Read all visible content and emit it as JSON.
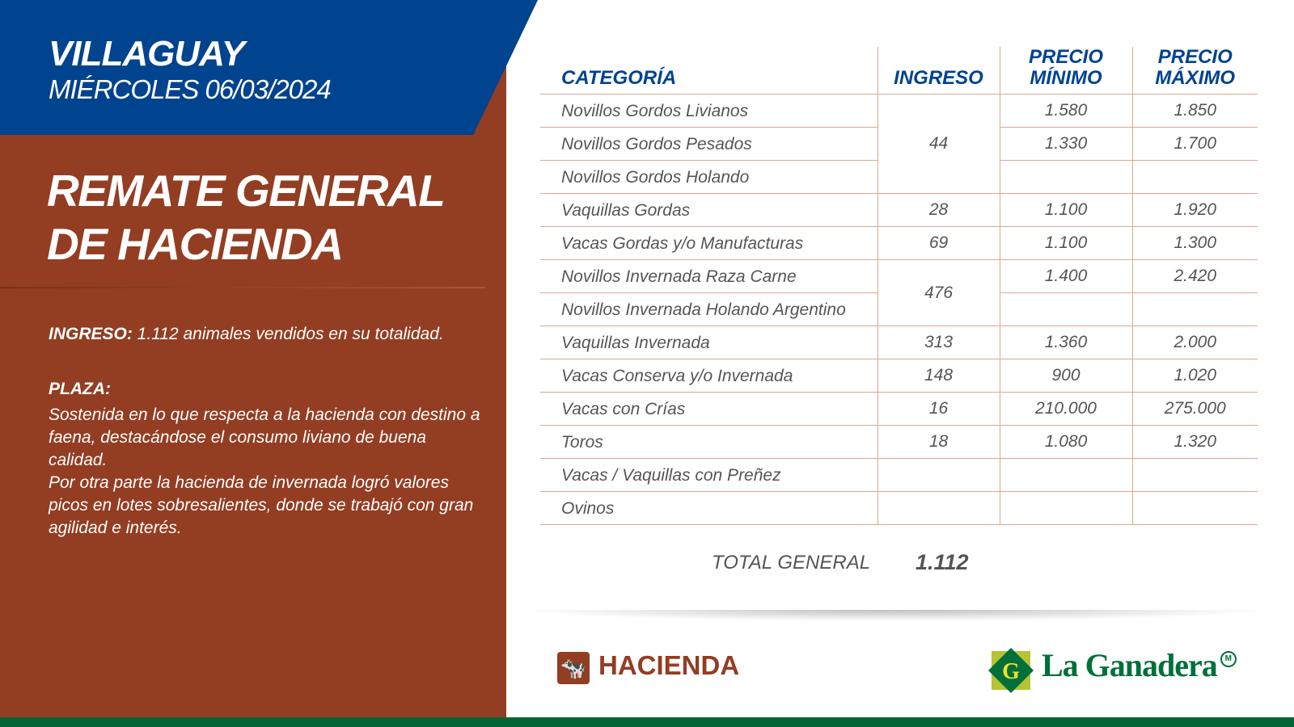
{
  "header": {
    "city": "VILLAGUAY",
    "date": "MIÉRCOLES 06/03/2024",
    "title_line1": "REMATE GENERAL",
    "title_line2": "DE HACIENDA"
  },
  "summary": {
    "ingreso_label": "INGRESO:",
    "ingreso_text": " 1.112 animales vendidos en su totalidad.",
    "plaza_label": "PLAZA:",
    "plaza_p1": "Sostenida en lo que respecta a la hacienda con destino a faena, destacándose el consumo liviano de buena calidad.",
    "plaza_p2": "Por otra parte la hacienda de invernada logró valores picos en lotes sobresalientes, donde se trabajó con gran agilidad e interés."
  },
  "table": {
    "headers": {
      "categoria": "CATEGORÍA",
      "ingreso": "INGRESO",
      "min1": "PRECIO",
      "min2": "MÍNIMO",
      "max1": "PRECIO",
      "max2": "MÁXIMO"
    },
    "rows": [
      {
        "cat": "Novillos Gordos Livianos",
        "ing": "44",
        "min": "1.580",
        "max": "1.850"
      },
      {
        "cat": "Novillos Gordos Pesados",
        "min": "1.330",
        "max": "1.700"
      },
      {
        "cat": "Novillos Gordos Holando",
        "min": "",
        "max": ""
      },
      {
        "cat": "Vaquillas Gordas",
        "ing": "28",
        "min": "1.100",
        "max": "1.920"
      },
      {
        "cat": "Vacas Gordas y/o Manufacturas",
        "ing": "69",
        "min": "1.100",
        "max": "1.300"
      },
      {
        "cat": "Novillos Invernada Raza Carne",
        "ing": "476",
        "min": "1.400",
        "max": "2.420"
      },
      {
        "cat": "Novillos Invernada Holando Argentino",
        "min": "",
        "max": ""
      },
      {
        "cat": "Vaquillas Invernada",
        "ing": "313",
        "min": "1.360",
        "max": "2.000"
      },
      {
        "cat": "Vacas Conserva y/o Invernada",
        "ing": "148",
        "min": "900",
        "max": "1.020"
      },
      {
        "cat": "Vacas con Crías",
        "ing": "16",
        "min": "210.000",
        "max": "275.000"
      },
      {
        "cat": "Toros",
        "ing": "18",
        "min": "1.080",
        "max": "1.320"
      },
      {
        "cat": "Vacas / Vaquillas con Preñez",
        "ing": "",
        "min": "",
        "max": ""
      },
      {
        "cat": "Ovinos",
        "ing": "",
        "min": "",
        "max": ""
      }
    ],
    "total_label": "TOTAL GENERAL",
    "total_value": "1.112"
  },
  "footer": {
    "section": "HACIENDA",
    "brand": "La Ganadera",
    "brand_letter": "G",
    "brand_mark": "M",
    "colors": {
      "blue": "#00438f",
      "brown": "#933d22",
      "green": "#006633"
    }
  }
}
